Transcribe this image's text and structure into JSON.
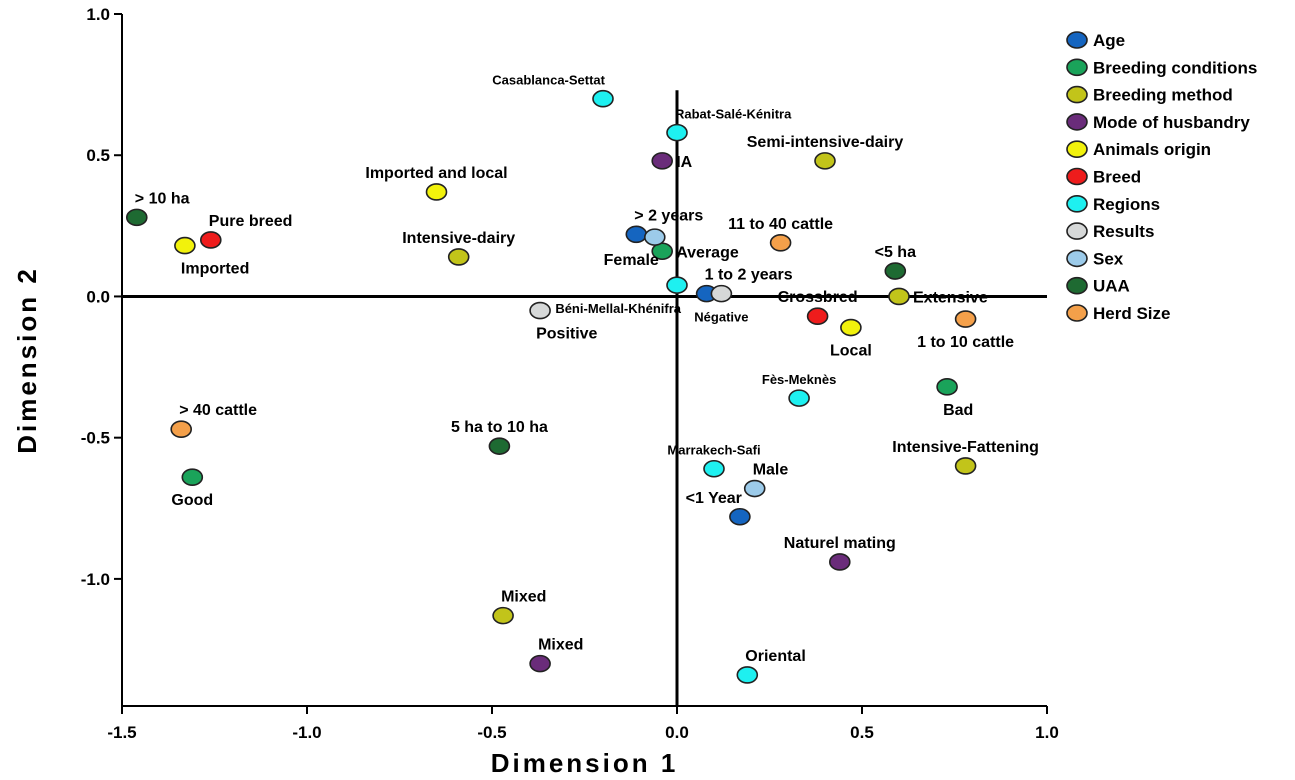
{
  "chart_data": {
    "type": "scatter",
    "xlabel": "Dimension 1",
    "ylabel": "Dimension 2",
    "xlim": [
      -1.5,
      1.0
    ],
    "ylim": [
      -1.45,
      1.0
    ],
    "xticks": [
      -1.5,
      -1.0,
      -0.5,
      0.0,
      0.5,
      1.0
    ],
    "xtick_labels": [
      "-1.5",
      "-1.0",
      "-0.5",
      "0.0",
      "0.5",
      "1.0"
    ],
    "yticks": [
      -1.0,
      -0.5,
      0.0,
      0.5,
      1.0
    ],
    "ytick_labels": [
      "-1.0",
      "-0.5",
      "0.0",
      "0.5",
      "1.0"
    ],
    "grid": false,
    "legend_position": "right",
    "series": [
      {
        "name": "Age",
        "color": "#1565c0",
        "points": [
          {
            "label": "> 2 years",
            "x": -0.11,
            "y": 0.22,
            "anchor": "above-right",
            "size": 16
          },
          {
            "label": "1 to 2 years",
            "x": 0.08,
            "y": 0.01,
            "anchor": "above-right",
            "size": 16
          },
          {
            "label": "<1 Year",
            "x": 0.17,
            "y": -0.78,
            "anchor": "above-left",
            "size": 16
          }
        ]
      },
      {
        "name": "Breeding conditions",
        "color": "#1aa35a",
        "points": [
          {
            "label": "Average",
            "x": -0.04,
            "y": 0.16,
            "anchor": "right",
            "size": 16
          },
          {
            "label": "Bad",
            "x": 0.73,
            "y": -0.32,
            "anchor": "below-right",
            "size": 16
          },
          {
            "label": "Good",
            "x": -1.31,
            "y": -0.64,
            "anchor": "below",
            "size": 16
          }
        ]
      },
      {
        "name": "Breeding method",
        "color": "#c2c41a",
        "points": [
          {
            "label": "Semi-intensive-dairy",
            "x": 0.4,
            "y": 0.48,
            "anchor": "above",
            "size": 16
          },
          {
            "label": "Intensive-dairy",
            "x": -0.59,
            "y": 0.14,
            "anchor": "above",
            "size": 16
          },
          {
            "label": "Extensive",
            "x": 0.6,
            "y": 0.0,
            "anchor": "right",
            "size": 16
          },
          {
            "label": "Intensive-Fattening",
            "x": 0.78,
            "y": -0.6,
            "anchor": "above",
            "size": 16
          },
          {
            "label": "Mixed",
            "x": -0.47,
            "y": -1.13,
            "anchor": "above-right",
            "size": 16
          }
        ]
      },
      {
        "name": "Mode of husbandry",
        "color": "#6a2c7a",
        "points": [
          {
            "label": "IA",
            "x": -0.04,
            "y": 0.48,
            "anchor": "right",
            "size": 16
          },
          {
            "label": "Naturel mating",
            "x": 0.44,
            "y": -0.94,
            "anchor": "above",
            "size": 16
          },
          {
            "label": "Mixed",
            "x": -0.37,
            "y": -1.3,
            "anchor": "above-right",
            "size": 16
          }
        ]
      },
      {
        "name": "Animals origin",
        "color": "#f2f20c",
        "points": [
          {
            "label": "Imported and local",
            "x": -0.65,
            "y": 0.37,
            "anchor": "above",
            "size": 16
          },
          {
            "label": "Imported",
            "x": -1.33,
            "y": 0.18,
            "anchor": "below-right",
            "size": 16
          },
          {
            "label": "Local",
            "x": 0.47,
            "y": -0.11,
            "anchor": "below",
            "size": 16
          }
        ]
      },
      {
        "name": "Breed",
        "color": "#ee1c1c",
        "points": [
          {
            "label": "Pure breed",
            "x": -1.26,
            "y": 0.2,
            "anchor": "above-right",
            "size": 16
          },
          {
            "label": "Crossbred",
            "x": 0.38,
            "y": -0.07,
            "anchor": "above",
            "size": 16
          }
        ]
      },
      {
        "name": "Regions",
        "color": "#1ef0f0",
        "points": [
          {
            "label": "Casablanca-Settat",
            "x": -0.2,
            "y": 0.7,
            "anchor": "above-left",
            "size": 13
          },
          {
            "label": "Rabat-Salé-Kénitra",
            "x": 0.0,
            "y": 0.58,
            "anchor": "above-right",
            "size": 13
          },
          {
            "label": "Béni-Mellal-Khénifra",
            "x": 0.0,
            "y": 0.04,
            "anchor": "below-left",
            "size": 13
          },
          {
            "label": "Fès-Meknès",
            "x": 0.33,
            "y": -0.36,
            "anchor": "above",
            "size": 13
          },
          {
            "label": "Marrakech-Safi",
            "x": 0.1,
            "y": -0.61,
            "anchor": "above",
            "size": 13
          },
          {
            "label": "Oriental",
            "x": 0.19,
            "y": -1.34,
            "anchor": "above-right",
            "size": 16
          }
        ]
      },
      {
        "name": "Results",
        "color": "#d6d8d8",
        "points": [
          {
            "label": "Positive",
            "x": -0.37,
            "y": -0.05,
            "anchor": "below-right",
            "size": 16
          },
          {
            "label": "Négative",
            "x": 0.12,
            "y": 0.01,
            "anchor": "below",
            "size": 13
          }
        ]
      },
      {
        "name": "Sex",
        "color": "#9ccbea",
        "points": [
          {
            "label": "Female",
            "x": -0.06,
            "y": 0.21,
            "anchor": "below-left",
            "size": 16
          },
          {
            "label": "Male",
            "x": 0.21,
            "y": -0.68,
            "anchor": "above-right",
            "size": 16
          }
        ]
      },
      {
        "name": "UAA",
        "color": "#1e6a32",
        "points": [
          {
            "label": "> 10 ha",
            "x": -1.46,
            "y": 0.28,
            "anchor": "above-right",
            "size": 16
          },
          {
            "label": "<5 ha",
            "x": 0.59,
            "y": 0.09,
            "anchor": "above",
            "size": 16
          },
          {
            "label": "5 ha to 10 ha",
            "x": -0.48,
            "y": -0.53,
            "anchor": "above",
            "size": 16
          }
        ]
      },
      {
        "name": "Herd Size",
        "color": "#f4a04a",
        "points": [
          {
            "label": "11 to 40 cattle",
            "x": 0.28,
            "y": 0.19,
            "anchor": "above",
            "size": 16
          },
          {
            "label": "1 to 10 cattle",
            "x": 0.78,
            "y": -0.08,
            "anchor": "below",
            "size": 16
          },
          {
            "label": "> 40 cattle",
            "x": -1.34,
            "y": -0.47,
            "anchor": "above-right",
            "size": 16
          }
        ]
      }
    ]
  }
}
